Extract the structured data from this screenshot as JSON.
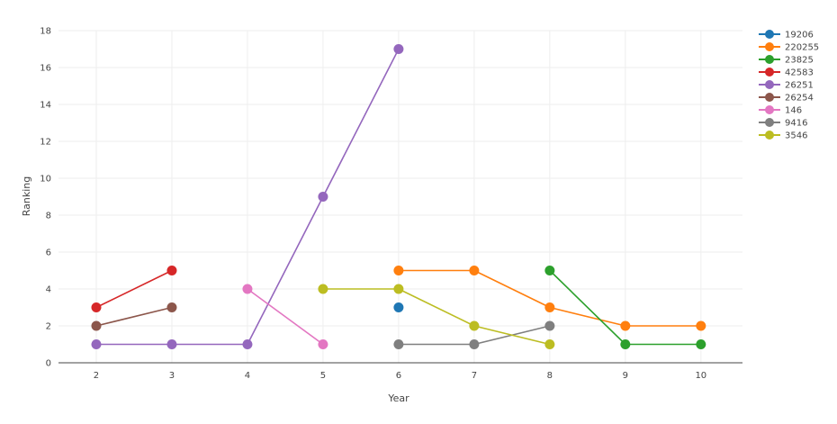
{
  "chart_data": {
    "type": "line",
    "title": "",
    "xlabel": "Year",
    "ylabel": "Ranking",
    "xlim": [
      1.5,
      10.55
    ],
    "ylim": [
      0,
      18
    ],
    "xticks": [
      2,
      3,
      4,
      5,
      6,
      7,
      8,
      9,
      10
    ],
    "yticks": [
      0,
      2,
      4,
      6,
      8,
      10,
      12,
      14,
      16,
      18
    ],
    "grid": true,
    "legend_position": "top-right",
    "series": [
      {
        "name": "19206",
        "color": "#1f77b4",
        "x": [
          6
        ],
        "y": [
          3
        ]
      },
      {
        "name": "220255",
        "color": "#ff7f0e",
        "x": [
          6,
          7,
          8,
          9,
          10
        ],
        "y": [
          5,
          5,
          3,
          2,
          2
        ]
      },
      {
        "name": "23825",
        "color": "#2ca02c",
        "x": [
          8,
          9,
          10
        ],
        "y": [
          5,
          1,
          1
        ]
      },
      {
        "name": "42583",
        "color": "#d62728",
        "x": [
          2,
          3
        ],
        "y": [
          3,
          5
        ]
      },
      {
        "name": "26251",
        "color": "#9467bd",
        "x": [
          2,
          3,
          4,
          5,
          6
        ],
        "y": [
          1,
          1,
          1,
          9,
          17
        ]
      },
      {
        "name": "26254",
        "color": "#8c564b",
        "x": [
          2,
          3
        ],
        "y": [
          2,
          3
        ]
      },
      {
        "name": "146",
        "color": "#e377c2",
        "x": [
          4,
          5
        ],
        "y": [
          4,
          1
        ]
      },
      {
        "name": "9416",
        "color": "#7f7f7f",
        "x": [
          6,
          7,
          8
        ],
        "y": [
          1,
          1,
          2
        ]
      },
      {
        "name": "3546",
        "color": "#bcbd22",
        "x": [
          5,
          6,
          7,
          8
        ],
        "y": [
          4,
          4,
          2,
          1
        ]
      }
    ]
  }
}
